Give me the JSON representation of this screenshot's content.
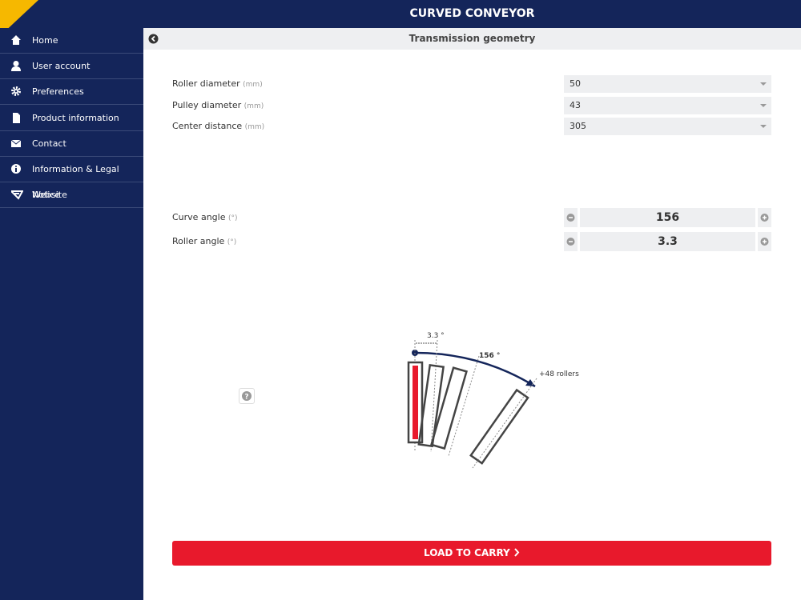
{
  "header": {
    "title": "CURVED CONVEYOR"
  },
  "sidebar": {
    "items": [
      "Home",
      "User account",
      "Preferences",
      "Product information",
      "Contact",
      "Information & Legal Notice",
      "Website"
    ]
  },
  "page": {
    "title": "Transmission geometry"
  },
  "geometry_fields": [
    {
      "label": "Roller diameter",
      "unit": "(mm)",
      "value": 50
    },
    {
      "label": "Pulley diameter",
      "unit": "(mm)",
      "value": 43
    },
    {
      "label": "Center distance",
      "unit": "(mm)",
      "value": 305
    }
  ],
  "angle_fields": [
    {
      "label": "Curve angle",
      "unit": "(°)",
      "value": 156
    },
    {
      "label": "Roller angle",
      "unit": "(°)",
      "value": 3.3
    }
  ],
  "diagram": {
    "roller_angle_label": "3.3 °",
    "curve_angle_label": "156 °",
    "extra_rollers_label": "+48 rollers"
  },
  "help": "?",
  "button": {
    "label": "LOAD TO CARRY"
  }
}
